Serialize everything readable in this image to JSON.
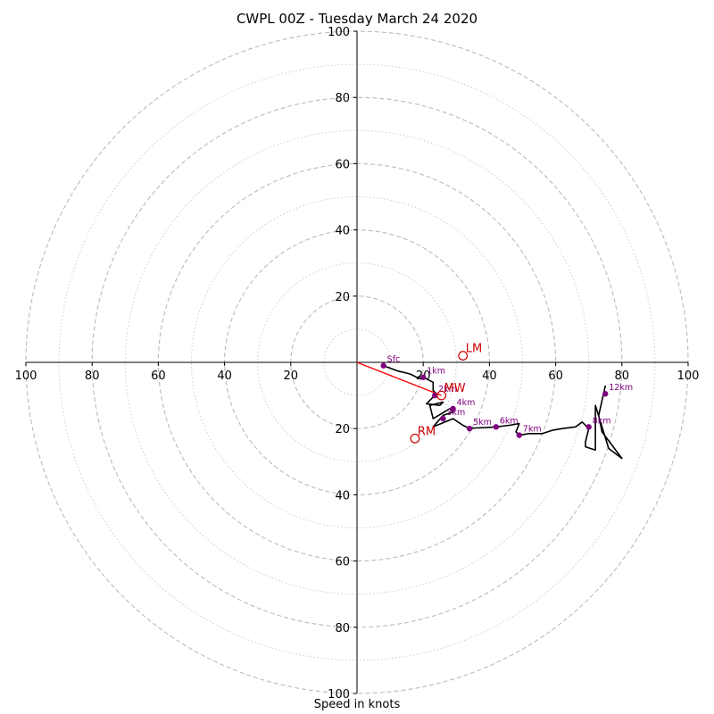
{
  "chart_data": {
    "type": "hodograph",
    "title": "CWPL 00Z - Tuesday March 24 2020",
    "xlabel": "Speed in knots",
    "ylabel": "",
    "xlim": [
      -100,
      100
    ],
    "ylim": [
      -100,
      100
    ],
    "grid": true,
    "rings_major": [
      20,
      40,
      60,
      80,
      100
    ],
    "rings_minor": [
      10,
      30,
      50,
      70,
      90
    ],
    "x_tick_labels": [
      "100",
      "80",
      "60",
      "40",
      "20",
      "20",
      "40",
      "60",
      "80",
      "100"
    ],
    "x_tick_values": [
      -100,
      -80,
      -60,
      -40,
      -20,
      20,
      40,
      60,
      80,
      100
    ],
    "y_tick_labels": [
      "100",
      "80",
      "60",
      "40",
      "20",
      "20",
      "40",
      "60",
      "80",
      "100"
    ],
    "y_tick_values": [
      100,
      80,
      60,
      40,
      20,
      -20,
      -40,
      -60,
      -80,
      -100
    ],
    "wind_profile": {
      "u": [
        8,
        12,
        16,
        18,
        20,
        21,
        23,
        23,
        24,
        21,
        25,
        26,
        22,
        23,
        28,
        29,
        26,
        23,
        29,
        32,
        34,
        36,
        39,
        42,
        46,
        49,
        48,
        49,
        52,
        56,
        59,
        62,
        66,
        68,
        70,
        69,
        69,
        72,
        72,
        76,
        80,
        74,
        73,
        75
      ],
      "v": [
        1,
        2.5,
        3.5,
        4.5,
        4.5,
        5,
        6,
        8.5,
        9.5,
        12.5,
        13,
        12,
        13,
        17,
        14,
        15,
        16,
        19.5,
        17,
        19,
        20,
        19.8,
        19.7,
        19.5,
        19,
        18.5,
        21,
        22,
        21.5,
        21.5,
        20.5,
        20,
        19.5,
        18,
        20,
        24,
        25.5,
        26.5,
        13,
        26,
        29,
        21,
        16,
        7
      ]
    },
    "series": [
      {
        "name": "height-markers",
        "points": [
          {
            "label": "Sfc",
            "u": 8,
            "v": 1
          },
          {
            "label": "1km",
            "u": 20,
            "v": 4.5
          },
          {
            "label": "2km",
            "u": 23.5,
            "v": 10
          },
          {
            "label": "4km",
            "u": 29,
            "v": 14
          },
          {
            "label": "3km",
            "u": 26,
            "v": 17
          },
          {
            "label": "5km",
            "u": 34,
            "v": 20
          },
          {
            "label": "6km",
            "u": 42,
            "v": 19.5
          },
          {
            "label": "7km",
            "u": 49,
            "v": 22
          },
          {
            "label": "8km",
            "u": 70,
            "v": 19.5
          },
          {
            "label": "12km",
            "u": 75,
            "v": 9.5
          }
        ]
      }
    ],
    "storm_motion": [
      {
        "label": "LM",
        "u": 32,
        "v": -2
      },
      {
        "label": "MW",
        "u": 25.5,
        "v": 10
      },
      {
        "label": "RM",
        "u": 17.5,
        "v": 23
      }
    ],
    "shear_vector_to": {
      "u": 25.5,
      "v": 10
    },
    "colors": {
      "grid": "#bbbbbb",
      "trace": "#000000",
      "markers": "#800080",
      "storm_motion": "#cc0000",
      "shear_vector": "#ff0000"
    }
  }
}
